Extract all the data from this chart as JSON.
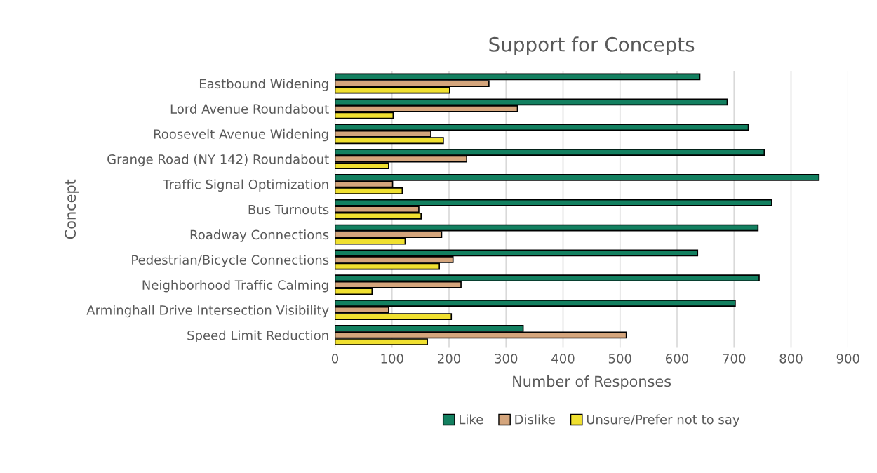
{
  "chart_data": {
    "type": "bar",
    "orientation": "horizontal",
    "title": "Support for Concepts",
    "xlabel": "Number of Responses",
    "ylabel": "Concept",
    "categories": [
      "Eastbound Widening",
      "Lord Avenue Roundabout",
      "Roosevelt Avenue Widening",
      "Grange Road (NY 142) Roundabout",
      "Traffic Signal Optimization",
      "Bus Turnouts",
      "Roadway Connections",
      "Pedestrian/Bicycle Connections",
      "Neighborhood Traffic Calming",
      "Arminghall Drive Intersection Visibility",
      "Speed Limit Reduction"
    ],
    "series": [
      {
        "name": "Like",
        "color": "#138060",
        "values": [
          640,
          688,
          725,
          753,
          849,
          766,
          742,
          636,
          744,
          702,
          330
        ]
      },
      {
        "name": "Dislike",
        "color": "#d4a57c",
        "values": [
          270,
          320,
          168,
          231,
          101,
          147,
          187,
          207,
          221,
          94,
          511
        ]
      },
      {
        "name": "Unsure/Prefer not to say",
        "color": "#f0e030",
        "values": [
          201,
          102,
          190,
          94,
          118,
          151,
          123,
          183,
          65,
          204,
          162
        ]
      }
    ],
    "xlim": [
      0,
      900
    ],
    "xticks": [
      0,
      100,
      200,
      300,
      400,
      500,
      600,
      700,
      800,
      900
    ],
    "grid": "x",
    "legend": "bottom"
  }
}
